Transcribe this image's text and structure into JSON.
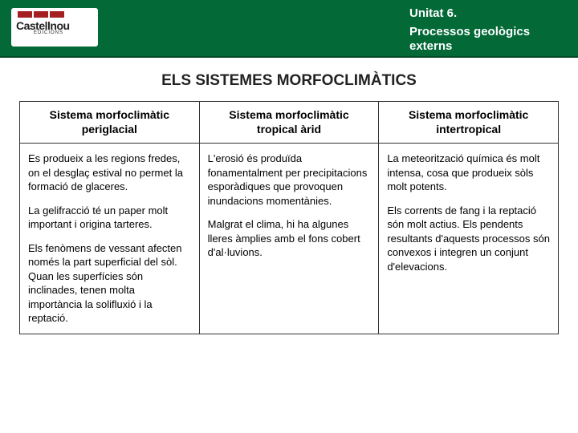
{
  "header": {
    "logo_text": "Castellnou",
    "logo_sub": "EDICIONS",
    "unit": "Unitat 6.",
    "subtitle_line1": "Processos geològics",
    "subtitle_line2": "externs"
  },
  "main_title": "ELS SISTEMES MORFOCLIMÀTICS",
  "table": {
    "headers": [
      {
        "line1": "Sistema morfoclimàtic",
        "line2": "periglacial"
      },
      {
        "line1": "Sistema morfoclimàtic",
        "line2": "tropical àrid"
      },
      {
        "line1": "Sistema morfoclimàtic",
        "line2": "intertropical"
      }
    ],
    "cells": [
      {
        "paras": [
          "Es produeix a les regions fredes, on el desglaç estival no permet la formació de glaceres.",
          "La gelifracció té un paper molt important i origina tarteres.",
          "Els fenòmens de vessant afecten només la part superficial del sòl. Quan les superfícies són inclinades, tenen molta importància la solifluxió i la reptació."
        ]
      },
      {
        "paras": [
          "L'erosió és produïda fonamentalment per precipitacions esporàdiques que provoquen inundacions momentànies.",
          "Malgrat el clima, hi ha algunes lleres àmplies amb el fons cobert d'al·luvions."
        ]
      },
      {
        "paras": [
          "La meteorització química és molt intensa, cosa que produeix sòls molt potents.",
          "Els corrents de fang i la reptació són molt actius. Els pendents resultants d'aquests processos són convexos i integren un conjunt d'elevacions."
        ]
      }
    ]
  },
  "colors": {
    "header_bg": "#026937",
    "logo_red": "#a41e22",
    "border": "#333333",
    "text": "#222222"
  }
}
